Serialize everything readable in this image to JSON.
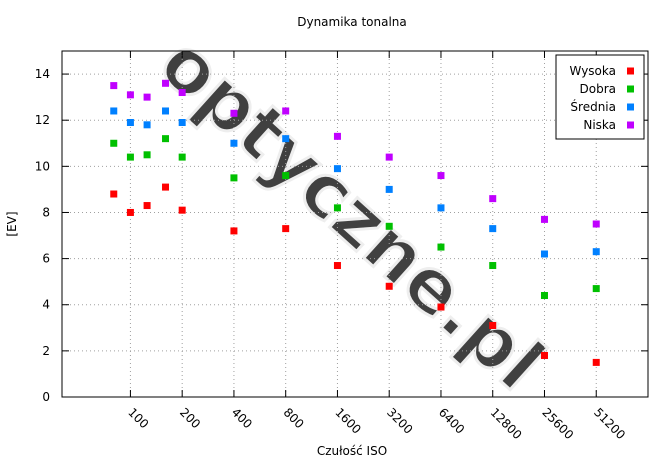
{
  "chart_data": {
    "type": "scatter",
    "title": "Dynamika tonalna",
    "xlabel": "Czułość ISO",
    "ylabel": "[EV]",
    "ylim": [
      0,
      15
    ],
    "yticks": [
      0,
      2,
      4,
      6,
      8,
      10,
      12,
      14
    ],
    "xscale": "log2",
    "xlim": [
      40,
      102400
    ],
    "xticks": [
      "100",
      "200",
      "400",
      "800",
      "1600",
      "3200",
      "6400",
      "12800",
      "25600",
      "51200"
    ],
    "grid": true,
    "legend": "top-right",
    "watermark": "optyczne.pl",
    "series": [
      {
        "name": "Wysoka",
        "color": "#ff0000",
        "points": [
          [
            80,
            8.8
          ],
          [
            100,
            8.0
          ],
          [
            125,
            8.3
          ],
          [
            160,
            9.1
          ],
          [
            200,
            8.1
          ],
          [
            400,
            7.2
          ],
          [
            800,
            7.3
          ],
          [
            1600,
            5.7
          ],
          [
            3200,
            4.8
          ],
          [
            6400,
            3.9
          ],
          [
            12800,
            3.1
          ],
          [
            25600,
            1.8
          ],
          [
            51200,
            1.5
          ]
        ]
      },
      {
        "name": "Dobra",
        "color": "#00c000",
        "points": [
          [
            80,
            11.0
          ],
          [
            100,
            10.4
          ],
          [
            125,
            10.5
          ],
          [
            160,
            11.2
          ],
          [
            200,
            10.4
          ],
          [
            400,
            9.5
          ],
          [
            800,
            9.6
          ],
          [
            1600,
            8.2
          ],
          [
            3200,
            7.4
          ],
          [
            6400,
            6.5
          ],
          [
            12800,
            5.7
          ],
          [
            25600,
            4.4
          ],
          [
            51200,
            4.7
          ]
        ]
      },
      {
        "name": "Średnia",
        "color": "#0080ff",
        "points": [
          [
            80,
            12.4
          ],
          [
            100,
            11.9
          ],
          [
            125,
            11.8
          ],
          [
            160,
            12.4
          ],
          [
            200,
            11.9
          ],
          [
            400,
            11.0
          ],
          [
            800,
            11.2
          ],
          [
            1600,
            9.9
          ],
          [
            3200,
            9.0
          ],
          [
            6400,
            8.2
          ],
          [
            12800,
            7.3
          ],
          [
            25600,
            6.2
          ],
          [
            51200,
            6.3
          ]
        ]
      },
      {
        "name": "Niska",
        "color": "#c000ff",
        "points": [
          [
            80,
            13.5
          ],
          [
            100,
            13.1
          ],
          [
            125,
            13.0
          ],
          [
            160,
            13.6
          ],
          [
            200,
            13.2
          ],
          [
            400,
            12.3
          ],
          [
            800,
            12.4
          ],
          [
            1600,
            11.3
          ],
          [
            3200,
            10.4
          ],
          [
            6400,
            9.6
          ],
          [
            12800,
            8.6
          ],
          [
            25600,
            7.7
          ],
          [
            51200,
            7.5
          ]
        ]
      }
    ]
  }
}
